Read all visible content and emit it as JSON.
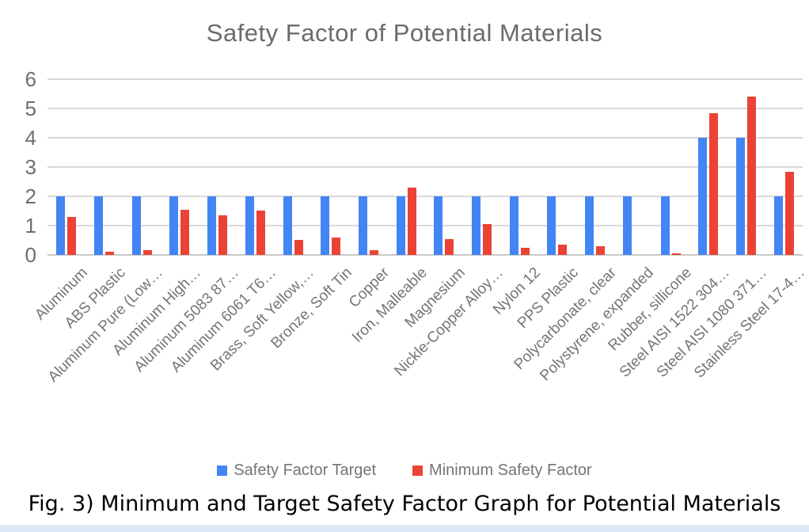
{
  "caption": "Fig. 3) Minimum and Target Safety Factor Graph for Potential Materials",
  "colors": {
    "target_blue": "#4285F4",
    "minimum_red": "#EA4335",
    "title_gray": "#6b6b6b",
    "axis_gray": "#757575",
    "gridline_gray": "#d9d9d9",
    "bottom_strip_blue": "#dce9f6"
  },
  "chart_data": {
    "type": "bar",
    "title": "Safety Factor of Potential Materials",
    "xlabel": "",
    "ylabel": "",
    "ylim": [
      0,
      6
    ],
    "yticks": [
      0,
      1,
      2,
      3,
      4,
      5,
      6
    ],
    "grid": true,
    "legend_position": "bottom",
    "categories": [
      "Aluminum",
      "ABS Plastic",
      "Aluminum Pure (Low…",
      "Aluminum High…",
      "Aluminum 5083 87…",
      "Aluminum 6061 T6…",
      "Brass, Soft Yellow,…",
      "Bronze, Soft Tin",
      "Copper",
      "Iron, Malleable",
      "Magnesium",
      "Nickle-Copper Alloy…",
      "Nylon 12",
      "PPS Plastic",
      "Polycarbonate, clear",
      "Polystyrene, expanded",
      "Rubber, sillicone",
      "Steel AISI 1522 304…",
      "Steel AISI 1080 371…",
      "Stainless Steel 17-4…"
    ],
    "series": [
      {
        "name": "Safety Factor Target",
        "color": "#4285F4",
        "values": [
          2,
          2,
          2,
          2,
          2,
          2,
          2,
          2,
          2,
          2,
          2,
          2,
          2,
          2,
          2,
          2,
          2,
          4,
          4,
          2
        ]
      },
      {
        "name": "Minimum Safety Factor",
        "color": "#EA4335",
        "values": [
          1.3,
          0.1,
          0.15,
          1.55,
          1.35,
          1.5,
          0.5,
          0.6,
          0.15,
          2.3,
          0.55,
          1.05,
          0.25,
          0.35,
          0.3,
          0,
          0.05,
          4.85,
          5.4,
          2.85
        ]
      }
    ]
  }
}
